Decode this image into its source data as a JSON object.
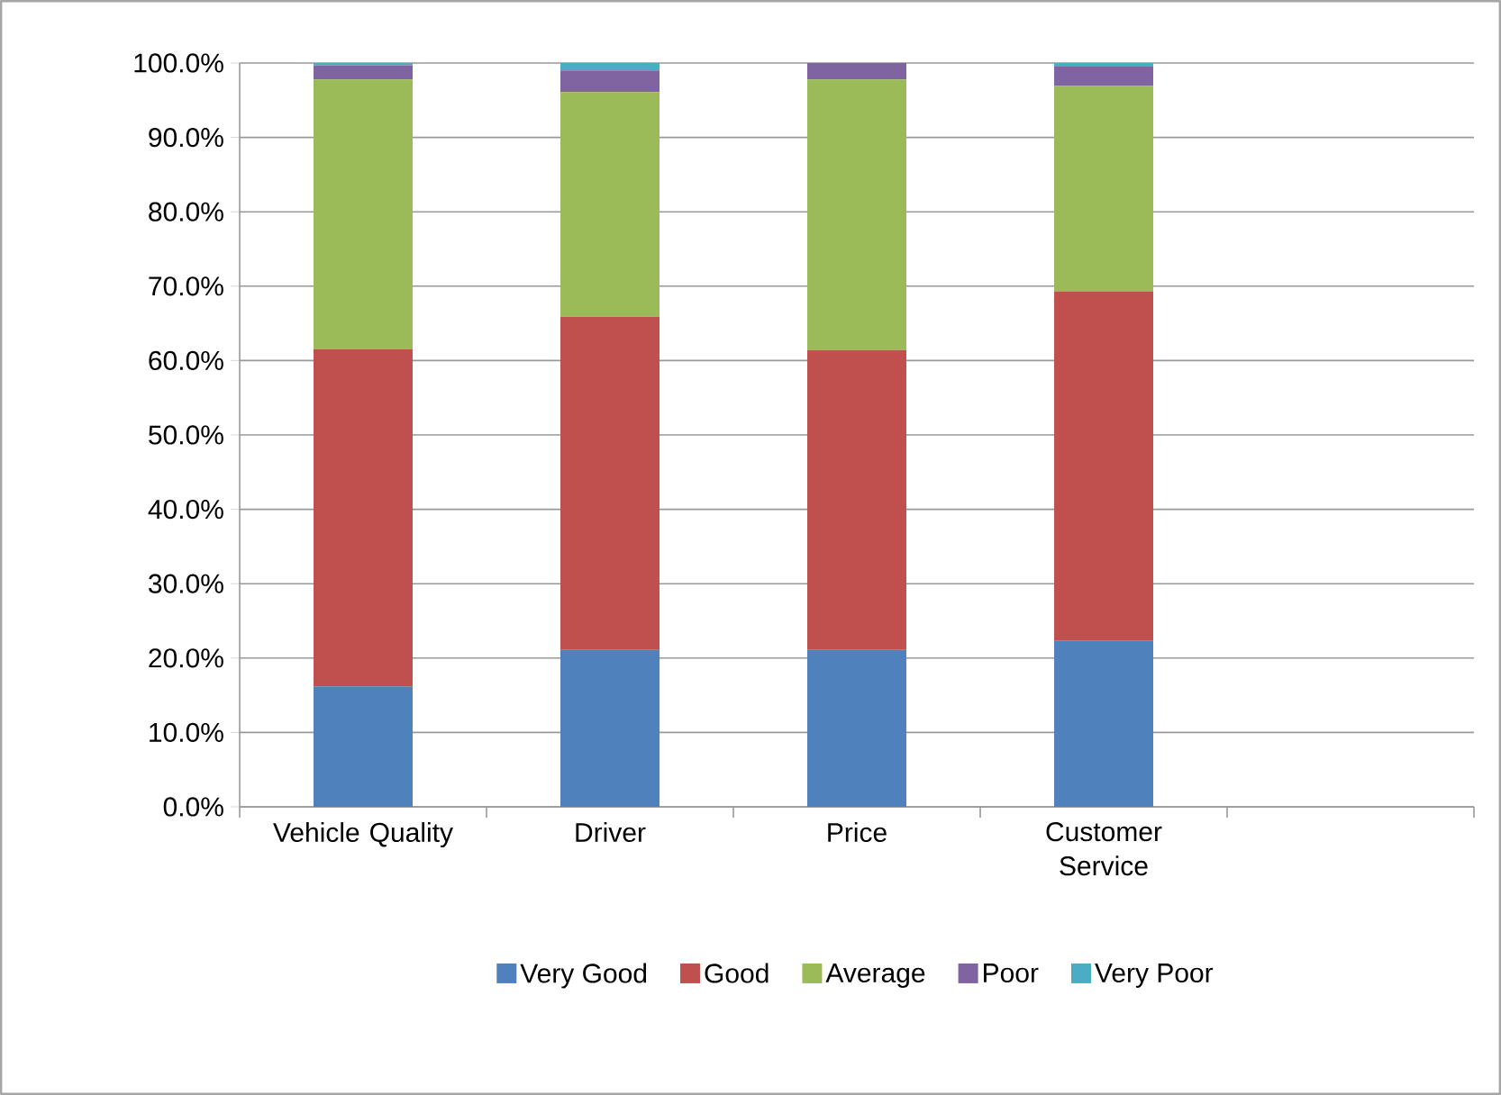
{
  "chart_data": {
    "type": "bar",
    "stacked": true,
    "categories": [
      "Vehicle Quality",
      "Driver",
      "Price",
      "Customer Service",
      null
    ],
    "series": [
      {
        "name": "Very Good",
        "color": "#4f81bd",
        "values": [
          16.2,
          21.1,
          21.1,
          22.3,
          null
        ]
      },
      {
        "name": "Good",
        "color": "#c0504d",
        "values": [
          45.3,
          44.8,
          40.3,
          47.0,
          null
        ]
      },
      {
        "name": "Average",
        "color": "#9bbb59",
        "values": [
          36.3,
          30.2,
          36.4,
          27.6,
          null
        ]
      },
      {
        "name": "Poor",
        "color": "#8064a2",
        "values": [
          1.9,
          2.9,
          2.2,
          2.7,
          null
        ]
      },
      {
        "name": "Very Poor",
        "color": "#4bacc6",
        "values": [
          0.3,
          1.0,
          0.0,
          0.4,
          null
        ]
      }
    ],
    "ylim": [
      0,
      100
    ],
    "yticks": [
      {
        "value": 0,
        "label": "0.0%"
      },
      {
        "value": 10,
        "label": "10.0%"
      },
      {
        "value": 20,
        "label": "20.0%"
      },
      {
        "value": 30,
        "label": "30.0%"
      },
      {
        "value": 40,
        "label": "40.0%"
      },
      {
        "value": 50,
        "label": "50.0%"
      },
      {
        "value": 60,
        "label": "60.0%"
      },
      {
        "value": 70,
        "label": "70.0%"
      },
      {
        "value": 80,
        "label": "80.0%"
      },
      {
        "value": 90,
        "label": "90.0%"
      },
      {
        "value": 100,
        "label": "100.0%"
      }
    ],
    "grid": "y",
    "legend": "bottom"
  }
}
